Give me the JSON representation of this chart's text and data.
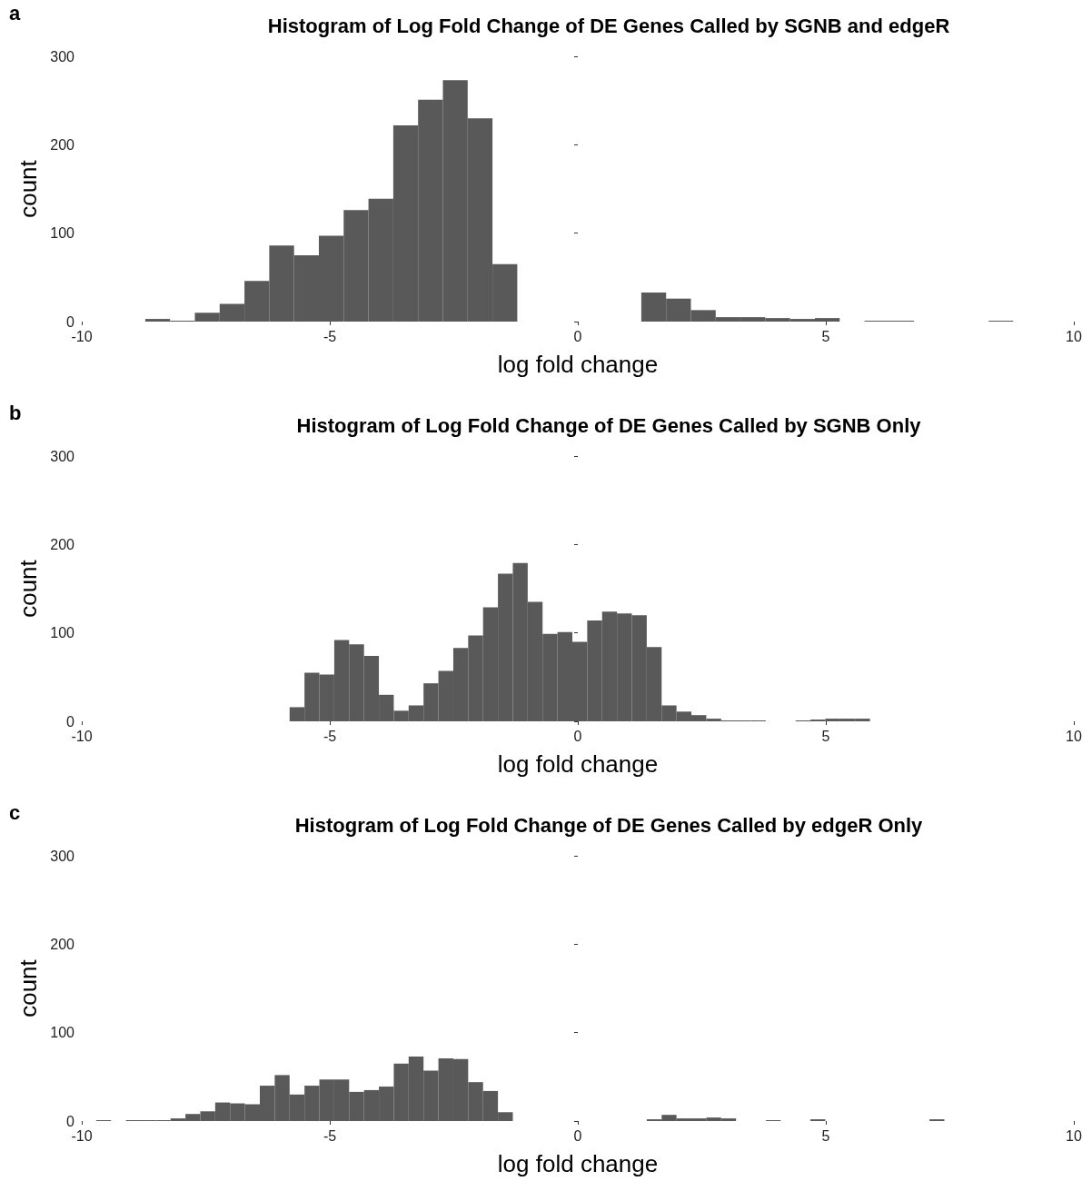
{
  "chart_data": [
    {
      "type": "histogram",
      "title": "Histogram of Log Fold Change of DE Genes Called by SGNB and edgeR",
      "xlabel": "log fold change",
      "ylabel": "count",
      "annotations": [
        "a"
      ],
      "color": "#595959",
      "bins": [
        -8.72,
        -8.22,
        -7.72,
        -7.22,
        -6.72,
        -6.22,
        -5.72,
        -5.22,
        -4.72,
        -4.22,
        -3.72,
        -3.22,
        -2.72,
        -2.22,
        -1.72,
        -1.22,
        -0.72,
        -0.22,
        0.28,
        0.78,
        1.28,
        1.78,
        2.28,
        2.78,
        3.28,
        3.78,
        4.28,
        4.78,
        5.28,
        5.78,
        6.28,
        6.78,
        7.28,
        7.78,
        8.28,
        8.78
      ],
      "values": [
        3,
        1,
        10,
        20,
        46,
        86,
        75,
        97,
        126,
        139,
        222,
        251,
        273,
        230,
        65,
        0,
        0,
        0,
        0,
        0,
        33,
        26,
        13,
        5,
        5,
        4,
        3,
        4,
        0,
        1,
        1,
        0,
        0,
        0,
        1
      ],
      "xlim": [
        -10,
        10
      ],
      "xticks": [
        -10,
        -5,
        0,
        5,
        10
      ],
      "ylim": [
        0,
        300
      ],
      "yticks": [
        0,
        100,
        200,
        300
      ],
      "grid": false
    },
    {
      "type": "histogram",
      "title": "Histogram of Log Fold Change of DE Genes Called by SGNB Only",
      "xlabel": "log fold change",
      "ylabel": "count",
      "annotations": [
        "b"
      ],
      "color": "#595959",
      "bins": [
        -5.81,
        -5.51,
        -5.21,
        -4.91,
        -4.61,
        -4.31,
        -4.01,
        -3.71,
        -3.41,
        -3.11,
        -2.81,
        -2.51,
        -2.21,
        -1.91,
        -1.61,
        -1.31,
        -1.01,
        -0.71,
        -0.41,
        -0.11,
        0.19,
        0.49,
        0.79,
        1.09,
        1.39,
        1.69,
        1.99,
        2.29,
        2.59,
        2.89,
        3.19,
        3.49,
        3.79,
        4.09,
        4.39,
        4.69,
        4.99,
        5.29,
        5.59,
        5.89
      ],
      "values": [
        16,
        55,
        53,
        92,
        87,
        74,
        30,
        12,
        18,
        43,
        57,
        83,
        97,
        129,
        167,
        179,
        135,
        99,
        101,
        90,
        114,
        124,
        122,
        120,
        84,
        18,
        11,
        7,
        3,
        1,
        1,
        1,
        0,
        0,
        1,
        2,
        3,
        3,
        3
      ],
      "xlim": [
        -10,
        10
      ],
      "xticks": [
        -10,
        -5,
        0,
        5,
        10
      ],
      "ylim": [
        0,
        300
      ],
      "yticks": [
        0,
        100,
        200,
        300
      ],
      "grid": false
    },
    {
      "type": "histogram",
      "title": "Histogram of Log Fold Change of DE Genes Called by edgeR Only",
      "xlabel": "log fold change",
      "ylabel": "count",
      "annotations": [
        "c"
      ],
      "color": "#595959",
      "bins": [
        -9.71,
        -9.41,
        -9.11,
        -8.81,
        -8.51,
        -8.21,
        -7.91,
        -7.61,
        -7.31,
        -7.01,
        -6.71,
        -6.41,
        -6.11,
        -5.81,
        -5.51,
        -5.21,
        -4.91,
        -4.61,
        -4.31,
        -4.01,
        -3.71,
        -3.41,
        -3.11,
        -2.81,
        -2.51,
        -2.21,
        -1.91,
        -1.61,
        -1.31,
        -1.01,
        -0.71,
        -0.41,
        -0.11,
        0.19,
        0.49,
        0.79,
        1.09,
        1.39,
        1.69,
        1.99,
        2.29,
        2.59,
        2.89,
        3.19,
        3.49,
        3.79,
        4.09,
        4.39,
        4.69,
        4.99,
        5.29,
        5.59,
        5.89,
        6.19,
        6.49,
        6.79,
        7.09,
        7.39
      ],
      "values": [
        1,
        0,
        1,
        1,
        1,
        3,
        8,
        11,
        21,
        20,
        19,
        40,
        52,
        30,
        40,
        47,
        47,
        33,
        35,
        39,
        65,
        73,
        57,
        71,
        70,
        44,
        34,
        10,
        0,
        0,
        0,
        0,
        0,
        0,
        0,
        0,
        0,
        2,
        7,
        3,
        3,
        4,
        3,
        0,
        0,
        1,
        0,
        0,
        2,
        0,
        0,
        0,
        0,
        0,
        0,
        0,
        2
      ],
      "xlim": [
        -10,
        10
      ],
      "xticks": [
        -10,
        -5,
        0,
        5,
        10
      ],
      "ylim": [
        0,
        300
      ],
      "yticks": [
        0,
        100,
        200,
        300
      ],
      "grid": false
    }
  ]
}
